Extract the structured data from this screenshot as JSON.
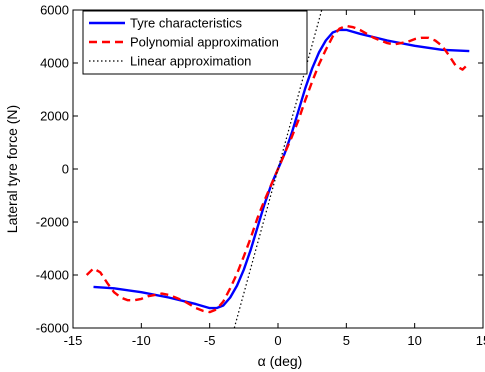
{
  "chart_data": {
    "type": "line",
    "xlabel": "α (deg)",
    "ylabel": "Lateral tyre force (N)",
    "xlim": [
      -15,
      15
    ],
    "ylim": [
      -6000,
      6000
    ],
    "xticks": [
      -15,
      -10,
      -5,
      0,
      5,
      10,
      15
    ],
    "yticks": [
      -6000,
      -4000,
      -2000,
      0,
      2000,
      4000,
      6000
    ],
    "xtick_labels": [
      "-15",
      "-10",
      "-5",
      "0",
      "5",
      "10",
      "15"
    ],
    "ytick_labels": [
      "-6000",
      "-4000",
      "-2000",
      "0",
      "2000",
      "4000",
      "6000"
    ],
    "grid": false,
    "legend_position": "top-left",
    "series": [
      {
        "name": "Tyre characteristics",
        "color": "#0000ff",
        "style": "solid",
        "x": [
          -13.5,
          -12,
          -10,
          -8,
          -6,
          -5,
          -4.5,
          -4,
          -3.5,
          -3,
          -2.5,
          -2,
          -1.5,
          -1,
          -0.5,
          0,
          0.5,
          1,
          1.5,
          2,
          2.5,
          3,
          3.5,
          4,
          4.5,
          5,
          6,
          8,
          10,
          12,
          14
        ],
        "y": [
          -4450,
          -4500,
          -4650,
          -4850,
          -5100,
          -5250,
          -5250,
          -5150,
          -4850,
          -4400,
          -3800,
          -3050,
          -2200,
          -1350,
          -600,
          0,
          600,
          1350,
          2200,
          3050,
          3800,
          4400,
          4850,
          5150,
          5250,
          5250,
          5100,
          4850,
          4650,
          4500,
          4450
        ]
      },
      {
        "name": "Polynomial approximation",
        "color": "#ff0000",
        "style": "dashed",
        "x": [
          -14,
          -13.5,
          -13,
          -12.5,
          -12,
          -11.5,
          -11,
          -10.5,
          -10,
          -9.5,
          -9,
          -8.5,
          -8,
          -7.5,
          -7,
          -6.5,
          -6,
          -5.5,
          -5,
          -4.5,
          -4,
          -3.5,
          -3,
          -2.5,
          -2,
          -1.5,
          -1,
          -0.5,
          0,
          0.5,
          1,
          1.5,
          2,
          2.5,
          3,
          3.5,
          4,
          4.5,
          5,
          5.5,
          6,
          6.5,
          7,
          7.5,
          8,
          8.5,
          9,
          9.5,
          10,
          10.5,
          11,
          11.5,
          12,
          12.5,
          13,
          13.5,
          14
        ],
        "y": [
          -4000,
          -3750,
          -3900,
          -4300,
          -4650,
          -4850,
          -4950,
          -4950,
          -4900,
          -4800,
          -4750,
          -4700,
          -4750,
          -4850,
          -4950,
          -5100,
          -5250,
          -5350,
          -5400,
          -5300,
          -5000,
          -4500,
          -3950,
          -3300,
          -2600,
          -1850,
          -1200,
          -600,
          0,
          600,
          1200,
          1850,
          2600,
          3300,
          3950,
          4500,
          5000,
          5300,
          5400,
          5350,
          5250,
          5100,
          4950,
          4850,
          4750,
          4700,
          4750,
          4800,
          4900,
          4950,
          4950,
          4850,
          4650,
          4300,
          3900,
          3750,
          4000
        ]
      },
      {
        "name": "Linear approximation",
        "color": "#000000",
        "style": "dotted",
        "x": [
          -3.2,
          3.2
        ],
        "y": [
          -6000,
          6000
        ]
      }
    ]
  }
}
